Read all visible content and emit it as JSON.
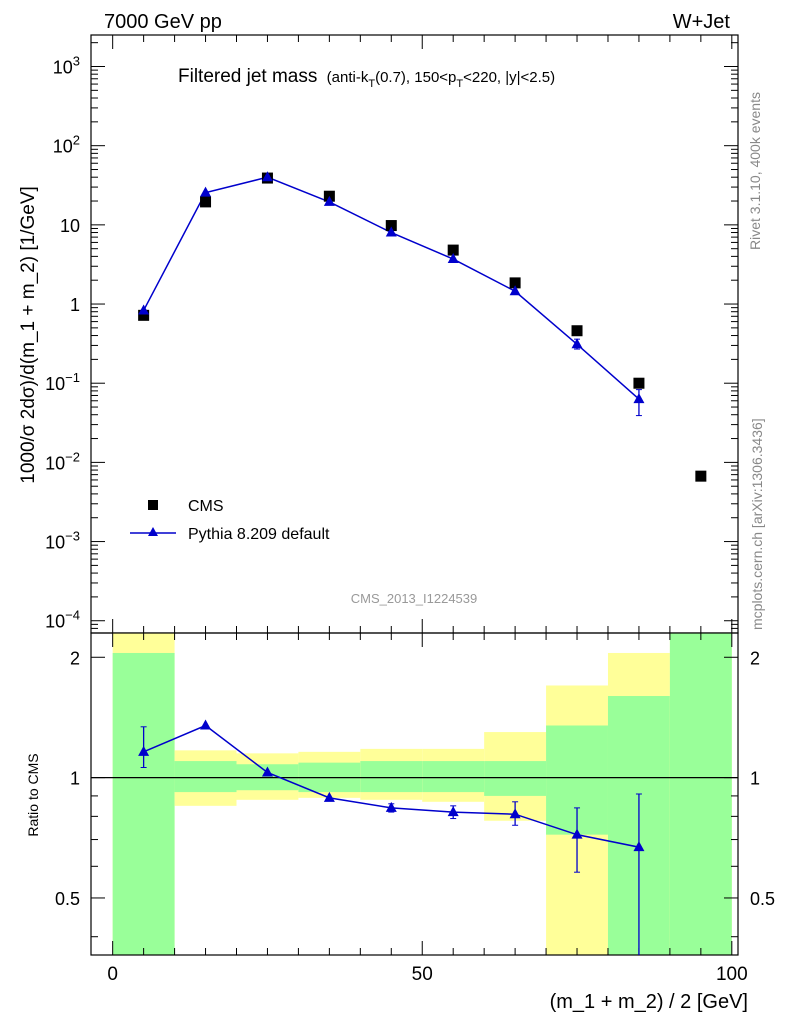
{
  "header": {
    "left": "7000 GeV pp",
    "right": "W+Jet"
  },
  "side_labels": {
    "rivet": "Rivet 3.1.10,  400k events",
    "mcplots": "mcplots.cern.ch [arXiv:1306.3436]"
  },
  "watermark": "CMS_2013_I1224539",
  "colors": {
    "mc": "#0000cc",
    "data": "#000000",
    "band_inner": "#99ff99",
    "band_outer": "#ffff99"
  },
  "chart_data": [
    {
      "type": "scatter",
      "panel": "main",
      "title": "Filtered jet mass",
      "title_cut": {
        "pre": "(anti-k",
        "s1": "T",
        "mid1": "(0.7), 150<p",
        "s2": "T",
        "post": "<220, |y|<2.5)"
      },
      "ylabel": "1000/σ 2dσ)/d(m_1 + m_2) [1/GeV]",
      "yscale": "log",
      "ylim": [
        7e-05,
        2500
      ],
      "xlim": [
        -3.5,
        101
      ],
      "yticks": [
        {
          "v": 1000,
          "base": "10",
          "exp": "3"
        },
        {
          "v": 100,
          "base": "10",
          "exp": "2"
        },
        {
          "v": 10,
          "base": "10",
          "exp": ""
        },
        {
          "v": 1,
          "base": "1",
          "exp": ""
        },
        {
          "v": 0.1,
          "base": "10",
          "exp": "−1"
        },
        {
          "v": 0.01,
          "base": "10",
          "exp": "−2"
        },
        {
          "v": 0.001,
          "base": "10",
          "exp": "−3"
        },
        {
          "v": 0.0001,
          "base": "10",
          "exp": "−4"
        }
      ],
      "legend_position": "lower-left",
      "series": [
        {
          "name": "CMS",
          "marker": "square",
          "x": [
            5,
            15,
            25,
            35,
            45,
            55,
            65,
            75,
            85,
            95
          ],
          "y": [
            0.72,
            19.5,
            39,
            23,
            9.8,
            4.8,
            1.85,
            0.46,
            0.1,
            0.0067
          ]
        },
        {
          "name": "Pythia 8.209 default",
          "marker": "triangle",
          "x": [
            5,
            15,
            25,
            35,
            45,
            55,
            65,
            75,
            85
          ],
          "y": [
            0.83,
            25.5,
            40,
            19.5,
            8.0,
            3.7,
            1.45,
            0.31,
            0.063
          ],
          "yerr_lo": [
            0.0,
            0.0,
            0.0,
            0.0,
            0.0,
            0.0,
            0.0,
            0.04,
            0.024
          ],
          "yerr_hi": [
            0.0,
            0.0,
            0.0,
            0.0,
            0.0,
            0.0,
            0.0,
            0.05,
            0.02
          ]
        }
      ]
    },
    {
      "type": "line",
      "panel": "ratio",
      "ylabel": "Ratio to CMS",
      "xlabel": "(m_1 + m_2) / 2 [GeV]",
      "xlim": [
        -3.5,
        101
      ],
      "ylim": [
        0.36,
        2.3
      ],
      "yscale": "log",
      "xticks": [
        0,
        50,
        100
      ],
      "yticks": [
        0.5,
        1,
        2
      ],
      "reference_line": 1,
      "bands": {
        "edges": [
          0,
          10,
          20,
          30,
          40,
          50,
          60,
          70,
          80,
          90,
          100
        ],
        "inner_lo": [
          0.36,
          0.92,
          0.93,
          0.92,
          0.92,
          0.92,
          0.9,
          0.72,
          0.36,
          0.36
        ],
        "inner_hi": [
          2.05,
          1.1,
          1.08,
          1.09,
          1.1,
          1.1,
          1.1,
          1.35,
          1.6,
          2.3
        ],
        "outer_lo": [
          0.36,
          0.85,
          0.88,
          0.89,
          0.88,
          0.87,
          0.78,
          0.36,
          0.36,
          0.36
        ],
        "outer_hi": [
          2.3,
          1.17,
          1.15,
          1.16,
          1.18,
          1.18,
          1.3,
          1.7,
          2.05,
          2.3
        ]
      },
      "series": [
        {
          "name": "Pythia 8.209 default",
          "x": [
            5,
            15,
            25,
            35,
            45,
            55,
            65,
            75,
            85
          ],
          "y": [
            1.16,
            1.35,
            1.03,
            0.89,
            0.84,
            0.82,
            0.81,
            0.72,
            0.67
          ],
          "yerr_lo": [
            0.1,
            0.01,
            0.01,
            0.01,
            0.02,
            0.03,
            0.05,
            0.14,
            0.36
          ],
          "yerr_hi": [
            0.18,
            0.01,
            0.01,
            0.01,
            0.02,
            0.03,
            0.06,
            0.12,
            0.24
          ]
        }
      ]
    }
  ]
}
